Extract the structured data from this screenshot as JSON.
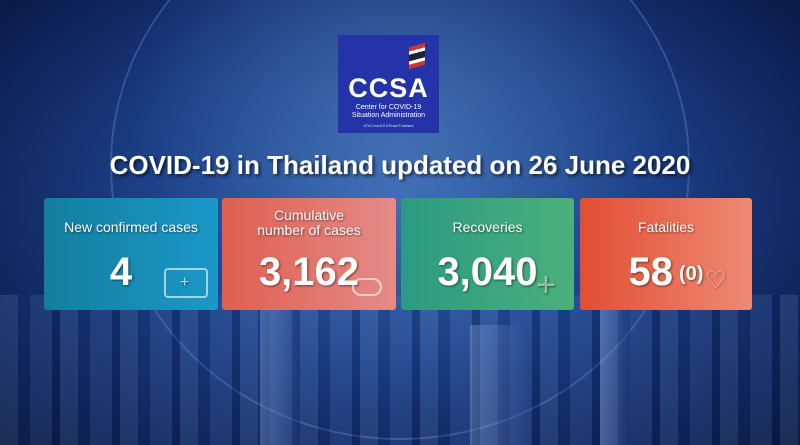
{
  "logo": {
    "name": "CCSA",
    "subtitle_line1": "Center for COVID-19",
    "subtitle_line2": "Situation Administration",
    "hashtags": "#ThCovid19 #TeamThailand"
  },
  "title": "COVID-19 in Thailand updated on 26 June 2020",
  "cards": [
    {
      "label": "New confirmed cases",
      "value": "4",
      "icon": "medical-kit-icon",
      "color": "#1a8fb5"
    },
    {
      "label_line1": "Cumulative",
      "label_line2": "number of cases",
      "value": "3,162",
      "icon": "cloud-icon",
      "color": "#e2675a"
    },
    {
      "label": "Recoveries",
      "value": "3,040",
      "icon": "plus-icon",
      "color": "#3aa37a"
    },
    {
      "label": "Fatalities",
      "value": "58",
      "extra": "(0)",
      "icon": "heart-hand-icon",
      "color": "#e8553c"
    }
  ]
}
